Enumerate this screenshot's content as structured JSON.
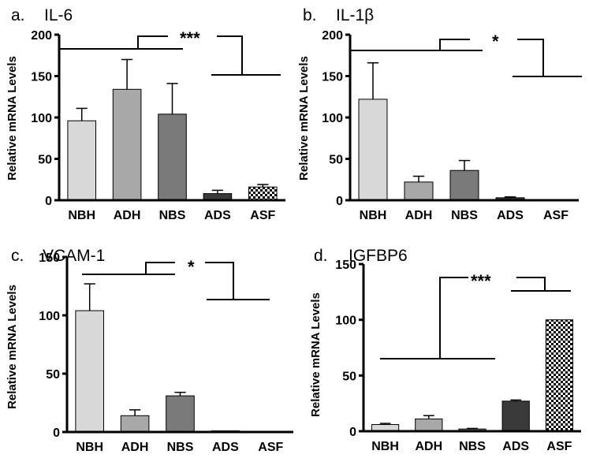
{
  "chart_data": [
    {
      "type": "bar",
      "panel_letter": "a.",
      "title": "IL-6",
      "ylabel": "Relative mRNA Levels",
      "categories": [
        "NBH",
        "ADH",
        "NBS",
        "ADS",
        "ASF"
      ],
      "values": [
        96,
        134,
        104,
        8,
        16
      ],
      "errors": [
        15,
        36,
        37,
        4,
        3
      ],
      "ylim": [
        0,
        200
      ],
      "yticks": [
        "0",
        "50",
        "100",
        "150",
        "200"
      ],
      "significance": "***",
      "bar_colors": [
        "#d8d8d8",
        "#a8a8a8",
        "#7a7a7a",
        "#3a3a3a",
        "checker"
      ]
    },
    {
      "type": "bar",
      "panel_letter": "b.",
      "title": "IL-1β",
      "ylabel": "Relative mRNA Levels",
      "categories": [
        "NBH",
        "ADH",
        "NBS",
        "ADS",
        "ASF"
      ],
      "values": [
        122,
        22,
        36,
        3,
        0
      ],
      "errors": [
        44,
        7,
        12,
        1,
        0
      ],
      "ylim": [
        0,
        200
      ],
      "yticks": [
        "0",
        "50",
        "100",
        "150",
        "200"
      ],
      "significance": "*",
      "bar_colors": [
        "#d8d8d8",
        "#a8a8a8",
        "#7a7a7a",
        "#3a3a3a",
        "checker"
      ]
    },
    {
      "type": "bar",
      "panel_letter": "c.",
      "title": "VCAM-1",
      "ylabel": "Relative mRNA Levels",
      "categories": [
        "NBH",
        "ADH",
        "NBS",
        "ADS",
        "ASF"
      ],
      "values": [
        104,
        14,
        31,
        1,
        0.5
      ],
      "errors": [
        23,
        5,
        3,
        0,
        0
      ],
      "ylim": [
        0,
        150
      ],
      "yticks": [
        "0",
        "50",
        "100",
        "150"
      ],
      "significance": "*",
      "bar_colors": [
        "#d8d8d8",
        "#a8a8a8",
        "#7a7a7a",
        "#3a3a3a",
        "checker"
      ]
    },
    {
      "type": "bar",
      "panel_letter": "d.",
      "title": "IGFBP6",
      "ylabel": "Relative mRNA Levels",
      "categories": [
        "NBH",
        "ADH",
        "NBS",
        "ADS",
        "ASF"
      ],
      "values": [
        6,
        11,
        2,
        27,
        100
      ],
      "errors": [
        1,
        3,
        0.5,
        1,
        0
      ],
      "ylim": [
        0,
        150
      ],
      "yticks": [
        "0",
        "50",
        "100",
        "150"
      ],
      "significance": "***",
      "bar_colors": [
        "#d8d8d8",
        "#a8a8a8",
        "#7a7a7a",
        "#3a3a3a",
        "checker"
      ]
    }
  ]
}
